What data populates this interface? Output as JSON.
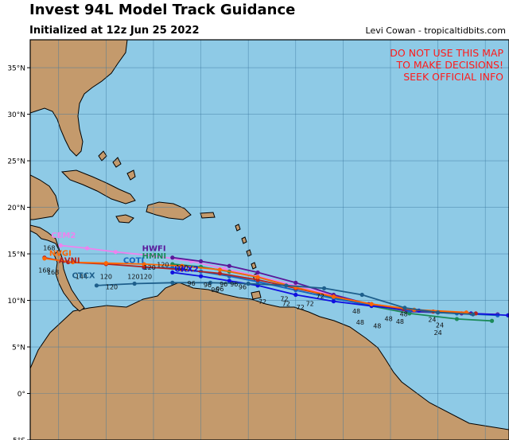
{
  "header": {
    "title": "Invest 94L Model Track Guidance",
    "initialized": "Initialized at 12z Jun 25 2022",
    "credit": "Levi Cowan - tropicaltidbits.com"
  },
  "warning": {
    "lines": [
      "DO NOT USE THIS MAP",
      "TO MAKE DECISIONS!",
      "SEEK OFFICIAL INFO"
    ],
    "color": "#ff1a1a"
  },
  "colors": {
    "ocean": "#8ecae6",
    "land": "#c49a6c",
    "grid": "#3c78a0"
  },
  "map": {
    "lat_range": [
      -5,
      38
    ],
    "lon_range": [
      -88,
      -37.5
    ],
    "lat_ticks": [
      {
        "value": 35,
        "label": "35°N"
      },
      {
        "value": 30,
        "label": "30°N"
      },
      {
        "value": 25,
        "label": "25°N"
      },
      {
        "value": 20,
        "label": "20°N"
      },
      {
        "value": 15,
        "label": "15°N"
      },
      {
        "value": 10,
        "label": "10°N"
      },
      {
        "value": 5,
        "label": "5°N"
      },
      {
        "value": 0,
        "label": "0°"
      },
      {
        "value": -5,
        "label": "5°S"
      }
    ]
  },
  "models": [
    {
      "name": "CEM2",
      "color": "#ee82ee",
      "label_pos": [
        -85.8,
        16.7
      ],
      "track": [
        [
          -38.7,
          8.5
        ],
        [
          -42.5,
          8.6
        ],
        [
          -48,
          8.9
        ],
        [
          -52.3,
          9.6
        ],
        [
          -56,
          10.5
        ],
        [
          -60,
          11.6
        ],
        [
          -64,
          12.6
        ],
        [
          -67.5,
          13.4
        ],
        [
          -71,
          14.2
        ],
        [
          -75,
          14.8
        ],
        [
          -79,
          15.2
        ],
        [
          -82,
          15.6
        ],
        [
          -84.8,
          15.9
        ]
      ],
      "hours": []
    },
    {
      "name": "HWFI",
      "color": "#5a189a",
      "label_pos": [
        -76.2,
        15.3
      ],
      "track": [
        [
          -38.7,
          8.5
        ],
        [
          -42.5,
          8.6
        ],
        [
          -48,
          8.8
        ],
        [
          -52.3,
          9.6
        ],
        [
          -56,
          10.6
        ],
        [
          -60,
          11.9
        ],
        [
          -64,
          13.0
        ],
        [
          -67,
          13.7
        ],
        [
          -70,
          14.2
        ],
        [
          -73,
          14.6
        ]
      ],
      "hours": []
    },
    {
      "name": "HMNI",
      "color": "#1b8a5a",
      "label_pos": [
        -76.2,
        14.5
      ],
      "track": [
        [
          -39.3,
          7.8
        ],
        [
          -43,
          8.0
        ],
        [
          -48,
          8.6
        ],
        [
          -52,
          9.4
        ],
        [
          -56,
          10.3
        ],
        [
          -60,
          11.4
        ],
        [
          -64,
          12.5
        ],
        [
          -67,
          13.1
        ],
        [
          -70,
          13.6
        ],
        [
          -73,
          13.9
        ]
      ],
      "hours": []
    },
    {
      "name": "COTI",
      "color": "#1565c0",
      "label_pos": [
        -78.2,
        14.0
      ],
      "track": [
        [
          -38.7,
          8.4
        ],
        [
          -43,
          8.6
        ],
        [
          -48,
          8.9
        ],
        [
          -52,
          9.5
        ],
        [
          -56,
          10.2
        ],
        [
          -60,
          11.1
        ],
        [
          -64,
          12.0
        ],
        [
          -67,
          12.6
        ],
        [
          -70,
          13.1
        ],
        [
          -73,
          13.5
        ],
        [
          -76,
          13.5
        ]
      ],
      "hours": []
    },
    {
      "name": "UKX2",
      "color": "#1010e0",
      "label_pos": [
        -72.8,
        13.1
      ],
      "track": [
        [
          -37.6,
          8.4
        ],
        [
          -41.5,
          8.6
        ],
        [
          -47,
          8.9
        ],
        [
          -52,
          9.4
        ],
        [
          -56,
          9.9
        ],
        [
          -60,
          10.6
        ],
        [
          -64,
          11.6
        ],
        [
          -67,
          12.1
        ],
        [
          -70,
          12.6
        ],
        [
          -73,
          13.0
        ]
      ],
      "hours": []
    },
    {
      "name": "AVNI",
      "color": "#b22222",
      "label_pos": [
        -85.0,
        14.0
      ],
      "track": [
        [
          -41,
          8.6
        ],
        [
          -45.5,
          8.8
        ],
        [
          -48.6,
          9.1
        ],
        [
          -52,
          9.6
        ],
        [
          -56,
          10.4
        ],
        [
          -60,
          11.3
        ],
        [
          -64,
          12.2
        ],
        [
          -68,
          12.9
        ],
        [
          -72,
          13.3
        ],
        [
          -76,
          13.6
        ],
        [
          -80,
          13.9
        ],
        [
          -84,
          14.1
        ],
        [
          -86.5,
          14.6
        ]
      ],
      "hours": [
        "24",
        "48",
        "72",
        "96",
        "120",
        "144"
      ]
    },
    {
      "name": "NVGI",
      "color": "#ff6600",
      "label_pos": [
        -86.0,
        14.8
      ],
      "track": [
        [
          -42,
          8.7
        ],
        [
          -47.5,
          9.0
        ],
        [
          -52,
          9.6
        ],
        [
          -56,
          10.4
        ],
        [
          -60,
          11.4
        ],
        [
          -64,
          12.5
        ],
        [
          -68,
          13.3
        ],
        [
          -72,
          13.7
        ],
        [
          -76,
          13.9
        ],
        [
          -80,
          14.0
        ],
        [
          -83.5,
          14.1
        ],
        [
          -86.5,
          14.5
        ]
      ],
      "hours": []
    },
    {
      "name": "CTCX",
      "color": "#1e5f8c",
      "label_pos": [
        -83.6,
        12.4
      ],
      "track": [
        [
          -41.3,
          8.5
        ],
        [
          -45,
          8.7
        ],
        [
          -48.5,
          9.2
        ],
        [
          -53,
          10.6
        ],
        [
          -57,
          11.3
        ],
        [
          -61,
          11.6
        ],
        [
          -65,
          11.8
        ],
        [
          -69,
          11.9
        ],
        [
          -73,
          11.9
        ],
        [
          -77,
          11.8
        ],
        [
          -81,
          11.6
        ]
      ],
      "hours": []
    }
  ],
  "hour_labels": [
    {
      "text": "24",
      "pos": [
        -45.6,
        7.7
      ]
    },
    {
      "text": "24",
      "pos": [
        -44.8,
        7.1
      ]
    },
    {
      "text": "24",
      "pos": [
        -45.0,
        6.3
      ]
    },
    {
      "text": "48",
      "pos": [
        -48.6,
        8.3
      ]
    },
    {
      "text": "48",
      "pos": [
        -49.0,
        7.5
      ]
    },
    {
      "text": "48",
      "pos": [
        -50.2,
        7.8
      ]
    },
    {
      "text": "48",
      "pos": [
        -51.4,
        7.0
      ]
    },
    {
      "text": "48",
      "pos": [
        -53.6,
        8.6
      ]
    },
    {
      "text": "48",
      "pos": [
        -53.2,
        7.4
      ]
    },
    {
      "text": "72",
      "pos": [
        -57.4,
        10.2
      ]
    },
    {
      "text": "72",
      "pos": [
        -58.5,
        9.4
      ]
    },
    {
      "text": "72",
      "pos": [
        -59.5,
        9.0
      ]
    },
    {
      "text": "72",
      "pos": [
        -61.0,
        9.4
      ]
    },
    {
      "text": "72",
      "pos": [
        -61.2,
        9.9
      ]
    },
    {
      "text": "72",
      "pos": [
        -63.5,
        9.6
      ]
    },
    {
      "text": "96",
      "pos": [
        -65.6,
        11.2
      ]
    },
    {
      "text": "96",
      "pos": [
        -66.5,
        11.5
      ]
    },
    {
      "text": "96",
      "pos": [
        -67.6,
        11.5
      ]
    },
    {
      "text": "96",
      "pos": [
        -68.0,
        11.0
      ]
    },
    {
      "text": "96",
      "pos": [
        -69.3,
        11.4
      ]
    },
    {
      "text": "96",
      "pos": [
        -71.0,
        11.6
      ]
    },
    {
      "text": "96",
      "pos": [
        -68.5,
        10.9
      ]
    },
    {
      "text": "120",
      "pos": [
        -72.0,
        13.3
      ]
    },
    {
      "text": "120",
      "pos": [
        -74.0,
        13.6
      ]
    },
    {
      "text": "120",
      "pos": [
        -75.4,
        13.3
      ]
    },
    {
      "text": "120",
      "pos": [
        -75.8,
        12.3
      ]
    },
    {
      "text": "120",
      "pos": [
        -77.1,
        12.3
      ]
    },
    {
      "text": "120",
      "pos": [
        -80.0,
        12.3
      ]
    },
    {
      "text": "120",
      "pos": [
        -79.4,
        11.2
      ]
    },
    {
      "text": "144",
      "pos": [
        -82.6,
        12.3
      ]
    },
    {
      "text": "168",
      "pos": [
        -85.6,
        12.8
      ]
    },
    {
      "text": "168",
      "pos": [
        -86.0,
        15.4
      ]
    },
    {
      "text": "168",
      "pos": [
        -86.5,
        13.0
      ]
    }
  ]
}
